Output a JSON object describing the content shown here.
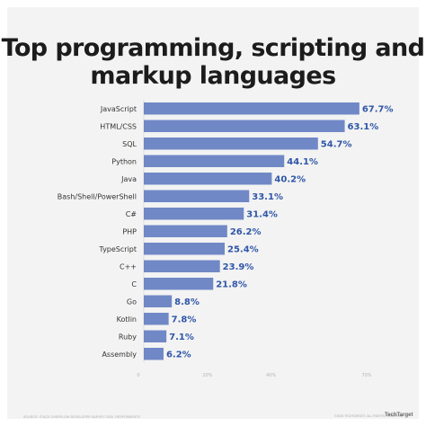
{
  "chart_data": {
    "type": "bar",
    "orientation": "horizontal",
    "title": "Top programming, scripting and markup languages",
    "categories": [
      "JavaScript",
      "HTML/CSS",
      "SQL",
      "Python",
      "Java",
      "Bash/Shell/PowerShell",
      "C#",
      "PHP",
      "TypeScript",
      "C++",
      "C",
      "Go",
      "Kotlin",
      "Ruby",
      "Assembly"
    ],
    "values": [
      67.7,
      63.1,
      54.7,
      44.1,
      40.2,
      33.1,
      31.4,
      26.2,
      25.4,
      23.9,
      21.8,
      8.8,
      7.8,
      7.1,
      6.2
    ],
    "value_labels": [
      "67.7%",
      "63.1%",
      "54.7%",
      "44.1%",
      "40.2%",
      "33.1%",
      "31.4%",
      "26.2%",
      "25.4%",
      "23.9%",
      "21.8%",
      "8.8%",
      "7.8%",
      "7.1%",
      "6.2%"
    ],
    "x_ticks": [
      0,
      20,
      40,
      70
    ],
    "x_tick_labels": [
      "0",
      "20%",
      "40%",
      "70%"
    ],
    "xlim": [
      0,
      70
    ],
    "grid": false,
    "legend": "none",
    "bar_color": "#7088c6",
    "value_label_color": "#2f56a8"
  },
  "footer": {
    "source": "SOURCE: STACK OVERFLOW DEVELOPER SURVEY 2020, RESPONDENTS",
    "copyright": "©2020 TECHTARGET. ALL RIGHTS RESERVED",
    "logo_text": "TechTarget"
  }
}
